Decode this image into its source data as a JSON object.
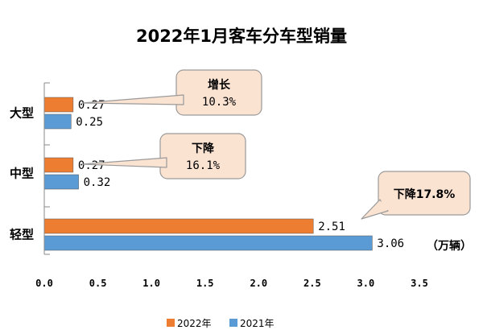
{
  "chart_data": {
    "type": "bar",
    "orientation": "horizontal",
    "title": "2022年1月客车分车型销量",
    "unit": "（万辆）",
    "categories": [
      "大型",
      "中型",
      "轻型"
    ],
    "series": [
      {
        "name": "2022年",
        "color": "#ED7D31",
        "values": [
          0.27,
          0.27,
          2.51
        ],
        "labels": [
          "0.27",
          "0.27",
          "2.51"
        ]
      },
      {
        "name": "2021年",
        "color": "#5B9BD5",
        "values": [
          0.25,
          0.32,
          3.06
        ],
        "labels": [
          "0.25",
          "0.32",
          "3.06"
        ]
      }
    ],
    "xlim": [
      0,
      3.5
    ],
    "xticks": [
      "0.0",
      "0.5",
      "1.0",
      "1.5",
      "2.0",
      "2.5",
      "3.0",
      "3.5"
    ],
    "grid": false,
    "legend_position": "bottom",
    "annotations": [
      {
        "category": "大型",
        "line1": "增长",
        "line2": "10.3%"
      },
      {
        "category": "中型",
        "line1": "下降",
        "line2": "16.1%"
      },
      {
        "category": "轻型",
        "line1": "下降17.8%",
        "line2": ""
      }
    ],
    "callout_color": "#FBE3D2"
  }
}
